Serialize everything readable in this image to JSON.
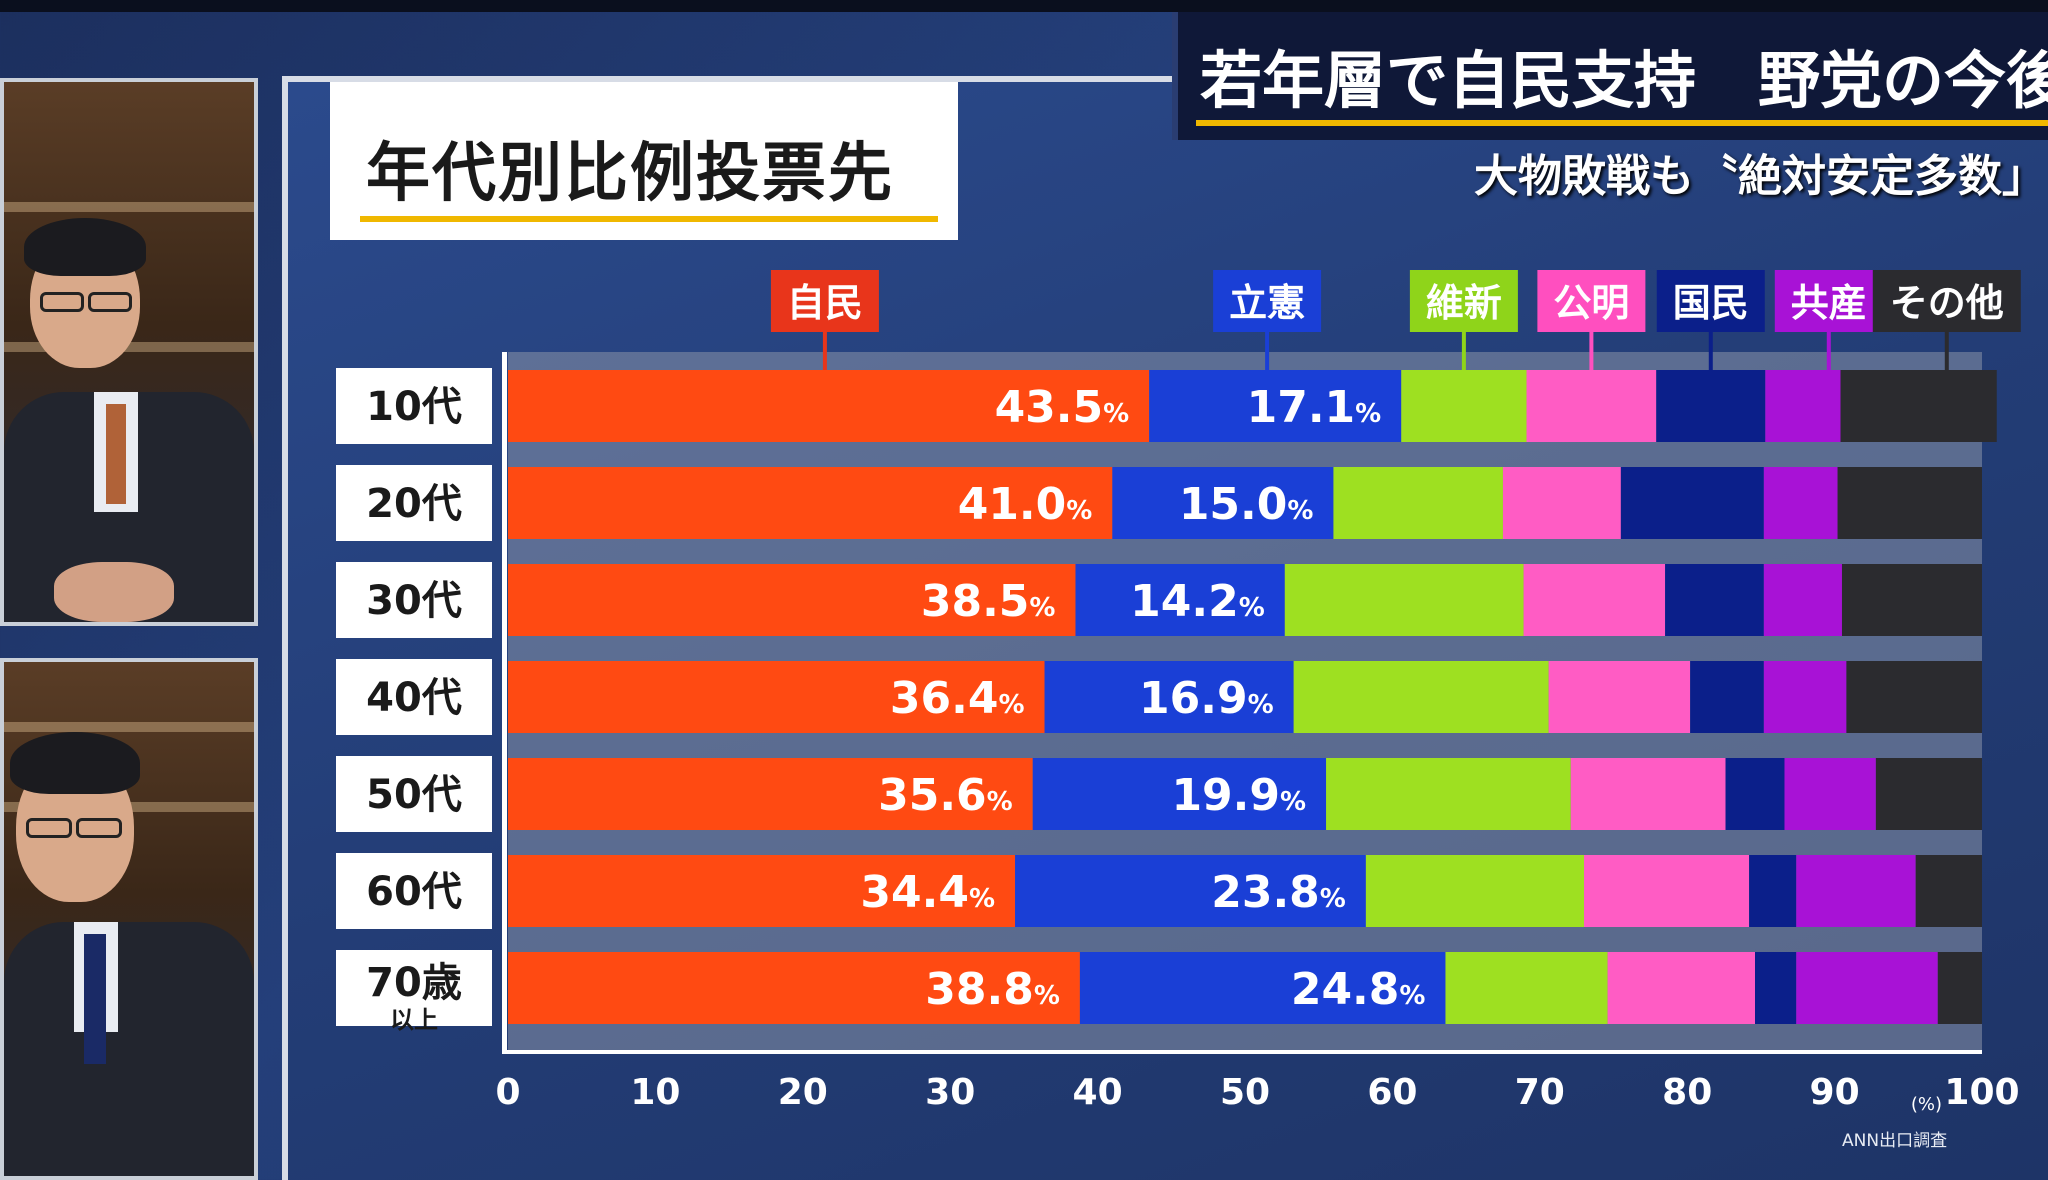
{
  "title": "年代別比例投票先",
  "headline": "若年層で自民支持　野党の今後は",
  "subheadline": "大物敗戦も〝絶対安定多数」",
  "source": "ANN出口調査",
  "chart_data": {
    "type": "bar",
    "orientation": "horizontal",
    "stacked": true,
    "categories": [
      {
        "main": "10代",
        "sub": ""
      },
      {
        "main": "20代",
        "sub": ""
      },
      {
        "main": "30代",
        "sub": ""
      },
      {
        "main": "40代",
        "sub": ""
      },
      {
        "main": "50代",
        "sub": ""
      },
      {
        "main": "60代",
        "sub": ""
      },
      {
        "main": "70歳",
        "sub": "以上"
      }
    ],
    "series": [
      {
        "name": "自民",
        "color": "#ff4a12",
        "labelColor": "#e8351b",
        "values": [
          43.5,
          41.0,
          38.5,
          36.4,
          35.6,
          34.4,
          38.8
        ],
        "labels": [
          "43.5",
          "41.0",
          "38.5",
          "36.4",
          "35.6",
          "34.4",
          "38.8"
        ]
      },
      {
        "name": "立憲",
        "color": "#1a3fd6",
        "labelColor": "#1a3fd6",
        "values": [
          17.1,
          15.0,
          14.2,
          16.9,
          19.9,
          23.8,
          24.8
        ],
        "labels": [
          "17.1",
          "15.0",
          "14.2",
          "16.9",
          "19.9",
          "23.8",
          "24.8"
        ]
      },
      {
        "name": "維新",
        "color": "#9ee021",
        "labelColor": "#8fd41a",
        "values": [
          8.5,
          11.5,
          16.2,
          17.3,
          16.6,
          14.8,
          11.0
        ],
        "labels": []
      },
      {
        "name": "公明",
        "color": "#ff5cc4",
        "labelColor": "#ff4fbf",
        "values": [
          8.8,
          8.0,
          9.6,
          9.6,
          10.5,
          11.2,
          10.0
        ],
        "labels": []
      },
      {
        "name": "国民",
        "color": "#0b1f8a",
        "labelColor": "#0b1f8a",
        "values": [
          7.4,
          9.7,
          6.7,
          5.0,
          4.0,
          3.2,
          2.8
        ],
        "labels": []
      },
      {
        "name": "共産",
        "color": "#a812d6",
        "labelColor": "#a812d6",
        "values": [
          5.1,
          5.0,
          5.3,
          5.6,
          6.2,
          8.1,
          9.6
        ],
        "labels": []
      },
      {
        "name": "その他",
        "color": "#2b2b2f",
        "labelColor": "#2b2b2f",
        "values": [
          10.6,
          9.8,
          9.5,
          9.2,
          7.2,
          4.5,
          3.0
        ],
        "labels": []
      }
    ],
    "percent_suffix": "%",
    "xlim": [
      0,
      100
    ],
    "xticks": [
      0,
      10,
      20,
      30,
      40,
      50,
      60,
      70,
      80,
      90,
      100
    ],
    "xunit": "(%)",
    "legend_placement": "top"
  }
}
